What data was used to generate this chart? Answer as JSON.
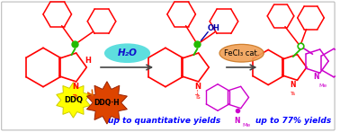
{
  "background_color": "#ffffff",
  "border_color": "#bbbbbb",
  "figsize": [
    3.78,
    1.47
  ],
  "dpi": 100,
  "red": "#ff0000",
  "green": "#22bb00",
  "purple": "#cc00cc",
  "blue_text": "#0000ff",
  "orange_arrow": "#e06000",
  "h2o_color": "#55dddd",
  "h2o_text_color": "#1111cc",
  "fecl3_color": "#f0a055",
  "fecl3_border": "#cc7722",
  "ddq_yellow": "#ffff00",
  "ddq_yellow_border": "#cccc00",
  "ddq_orange": "#dd4400",
  "ddq_orange_border": "#992200",
  "gray_arrow": "#444444",
  "text_yield1": "up to quantitative yields",
  "text_yield2": "up to 77% yields",
  "text_h2o": "H₂O",
  "text_fecl3": "FeCl₃ cat.",
  "text_ddq": "DDQ",
  "text_ddqh": "DDQ·H"
}
